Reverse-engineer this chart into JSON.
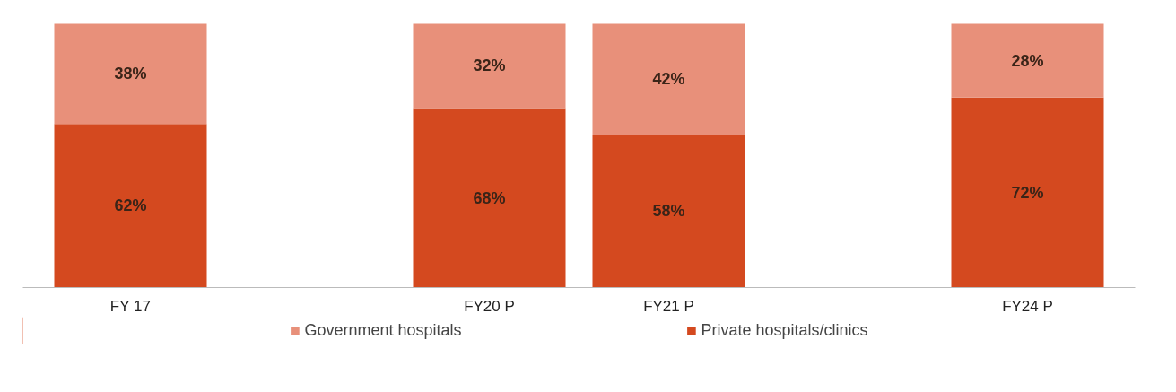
{
  "chart_data": {
    "type": "bar",
    "stacked": true,
    "categories": [
      "FY 17",
      null,
      "FY20 P",
      "FY21 P",
      null,
      "FY24 P"
    ],
    "series": [
      {
        "name": "Private hospitals/clinics",
        "color": "#d4491f",
        "values": [
          62,
          null,
          68,
          58,
          null,
          72
        ],
        "value_labels": [
          "62%",
          null,
          "68%",
          "58%",
          null,
          "72%"
        ]
      },
      {
        "name": "Government hospitals",
        "color": "#e8907a",
        "values": [
          38,
          null,
          32,
          42,
          null,
          28
        ],
        "value_labels": [
          "38%",
          null,
          "32%",
          "42%",
          null,
          "28%"
        ]
      }
    ],
    "legend": "bottom"
  }
}
